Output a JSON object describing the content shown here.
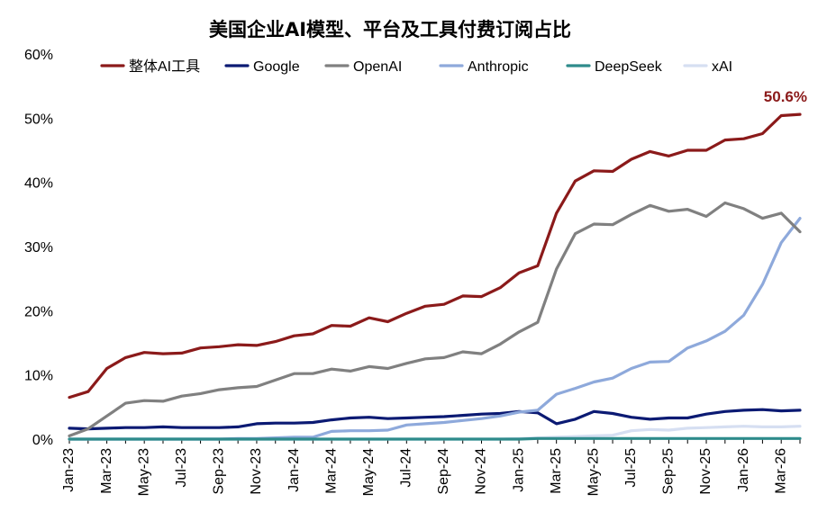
{
  "chart_data": {
    "type": "line",
    "title": "美国企业AI模型、平台及工具付费订阅占比",
    "xlabel": "",
    "ylabel": "",
    "ylim": [
      0,
      60
    ],
    "yticks": [
      "0%",
      "10%",
      "20%",
      "30%",
      "40%",
      "50%",
      "60%"
    ],
    "x": [
      "Jan-23",
      "Feb-23",
      "Mar-23",
      "Apr-23",
      "May-23",
      "Jun-23",
      "Jul-23",
      "Aug-23",
      "Sep-23",
      "Oct-23",
      "Nov-23",
      "Dec-23",
      "Jan-24",
      "Feb-24",
      "Mar-24",
      "Apr-24",
      "May-24",
      "Jun-24",
      "Jul-24",
      "Aug-24",
      "Sep-24",
      "Oct-24",
      "Nov-24",
      "Dec-24",
      "Jan-25",
      "Feb-25",
      "Mar-25",
      "Apr-25",
      "May-25",
      "Jun-25",
      "Jul-25",
      "Aug-25",
      "Sep-25",
      "Oct-25",
      "Nov-25",
      "Dec-25",
      "Jan-26",
      "Feb-26",
      "Mar-26",
      "Apr-26"
    ],
    "xticks": [
      "Jan-23",
      "Mar-23",
      "May-23",
      "Jul-23",
      "Sep-23",
      "Nov-23",
      "Jan-24",
      "Mar-24",
      "May-24",
      "Jul-24",
      "Sep-24",
      "Nov-24",
      "Jan-25",
      "Mar-25",
      "May-25",
      "Jul-25",
      "Sep-25",
      "Nov-25",
      "Jan-26",
      "Mar-26"
    ],
    "grid": false,
    "legend_position": "top",
    "series": [
      {
        "name": "整体AI工具",
        "color": "#8b1a1a",
        "values": [
          6.5,
          7.4,
          11.0,
          12.7,
          13.5,
          13.3,
          13.4,
          14.2,
          14.4,
          14.7,
          14.6,
          15.2,
          16.1,
          16.4,
          17.7,
          17.6,
          18.9,
          18.3,
          19.6,
          20.7,
          21.0,
          22.3,
          22.2,
          23.6,
          25.9,
          27.0,
          35.2,
          40.2,
          41.8,
          41.7,
          43.6,
          44.8,
          44.1,
          45.0,
          45.0,
          46.6,
          46.8,
          47.6,
          50.4,
          50.6
        ]
      },
      {
        "name": "Google",
        "color": "#0b1a73",
        "values": [
          1.7,
          1.6,
          1.7,
          1.8,
          1.8,
          1.9,
          1.8,
          1.8,
          1.8,
          1.9,
          2.4,
          2.5,
          2.5,
          2.6,
          3.0,
          3.3,
          3.4,
          3.2,
          3.3,
          3.4,
          3.5,
          3.7,
          3.9,
          4.0,
          4.3,
          4.1,
          2.4,
          3.1,
          4.3,
          4.0,
          3.4,
          3.1,
          3.3,
          3.3,
          3.9,
          4.3,
          4.5,
          4.6,
          4.4,
          4.5
        ]
      },
      {
        "name": "OpenAI",
        "color": "#808080",
        "values": [
          0.5,
          1.6,
          3.6,
          5.6,
          6.0,
          5.9,
          6.7,
          7.1,
          7.7,
          8.0,
          8.2,
          9.2,
          10.2,
          10.2,
          10.9,
          10.6,
          11.3,
          11.0,
          11.8,
          12.5,
          12.7,
          13.6,
          13.3,
          14.8,
          16.7,
          18.2,
          26.5,
          32.0,
          33.5,
          33.4,
          35.0,
          36.4,
          35.5,
          35.8,
          34.7,
          36.8,
          35.9,
          34.4,
          35.2,
          32.3
        ]
      },
      {
        "name": "Anthropic",
        "color": "#8ea9db",
        "values": [
          0.0,
          0.0,
          0.0,
          0.0,
          0.0,
          0.0,
          0.0,
          0.0,
          0.0,
          0.1,
          0.1,
          0.2,
          0.3,
          0.3,
          1.2,
          1.3,
          1.3,
          1.4,
          2.2,
          2.4,
          2.6,
          2.9,
          3.2,
          3.6,
          4.2,
          4.5,
          7.0,
          7.9,
          8.9,
          9.5,
          11.0,
          12.0,
          12.1,
          14.2,
          15.3,
          16.8,
          19.3,
          24.1,
          30.6,
          34.4
        ]
      },
      {
        "name": "DeepSeek",
        "color": "#2e8b8b",
        "values": [
          0.0,
          0.0,
          0.0,
          0.0,
          0.0,
          0.0,
          0.0,
          0.0,
          0.0,
          0.0,
          0.0,
          0.0,
          0.0,
          0.0,
          0.0,
          0.0,
          0.0,
          0.0,
          0.0,
          0.0,
          0.0,
          0.0,
          0.0,
          0.0,
          0.0,
          0.1,
          0.1,
          0.1,
          0.1,
          0.1,
          0.1,
          0.1,
          0.1,
          0.1,
          0.1,
          0.1,
          0.1,
          0.1,
          0.1,
          0.1
        ]
      },
      {
        "name": "xAI",
        "color": "#d6dff2",
        "values": [
          0.0,
          0.0,
          0.0,
          0.0,
          0.0,
          0.0,
          0.0,
          0.0,
          0.0,
          0.0,
          0.0,
          0.0,
          0.0,
          0.0,
          0.0,
          0.0,
          0.0,
          0.0,
          0.0,
          0.0,
          0.0,
          0.0,
          0.0,
          0.0,
          0.1,
          0.2,
          0.3,
          0.4,
          0.5,
          0.6,
          1.3,
          1.5,
          1.4,
          1.7,
          1.8,
          1.9,
          2.0,
          1.9,
          1.9,
          2.0
        ]
      }
    ],
    "annotations": [
      {
        "text": "50.6%",
        "series": "整体AI工具",
        "x": "Apr-26",
        "color": "#8b1a1a"
      }
    ]
  }
}
